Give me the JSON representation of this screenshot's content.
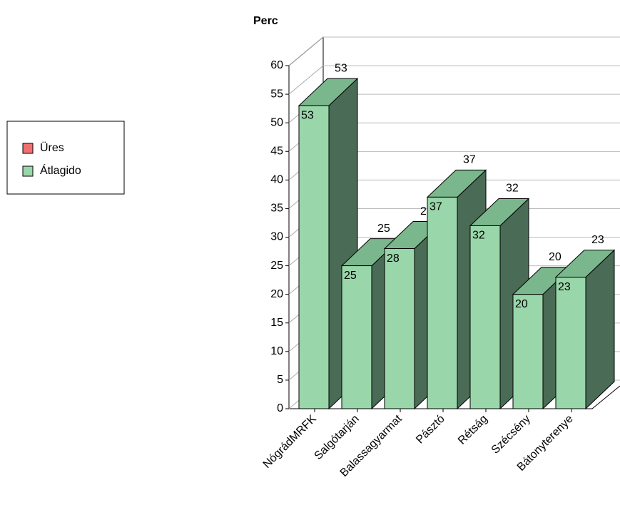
{
  "chart_data": {
    "type": "bar3d",
    "ylabel": "Perc",
    "categories": [
      "NógrádMRFK",
      "Salgótarján",
      "Balassagyarmat",
      "Pásztó",
      "Rétság",
      "Szécsény",
      "Bátonyterenye"
    ],
    "series": [
      {
        "name": "Üres",
        "color": "#f07070",
        "values": [
          null,
          null,
          null,
          null,
          null,
          null,
          null
        ]
      },
      {
        "name": "Átlagido",
        "color": "#99d6aa",
        "values": [
          53,
          25,
          28,
          37,
          32,
          20,
          23
        ]
      }
    ],
    "ylim": [
      0,
      60
    ],
    "yticks": [
      0,
      5,
      10,
      15,
      20,
      25,
      30,
      35,
      40,
      45,
      50,
      55,
      60
    ],
    "grid": true
  }
}
